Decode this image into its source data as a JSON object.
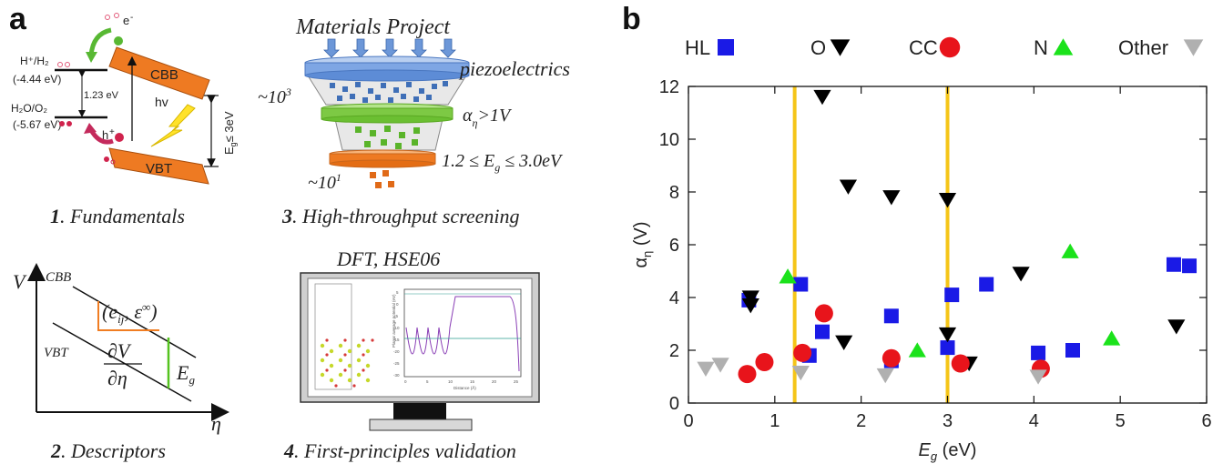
{
  "panel_a": {
    "letter": "a",
    "p1": {
      "num": "1",
      "caption": ". Fundamentals",
      "cbb": "CBB",
      "vbt": "VBT",
      "e_minus": "e",
      "e_minus_sup": "-",
      "h_plus": "h",
      "h_plus_sup": "+",
      "hv": "hv",
      "h2_label": "H⁺/H₂",
      "h2_energy": "(-4.44 eV)",
      "o2_label": "H₂O/O₂",
      "o2_energy": "(-5.67 eV)",
      "gap_small": "1.23 eV",
      "gap_label": "E",
      "gap_sub": "g",
      "gap_cond": "≤ 3eV"
    },
    "p2": {
      "num": "2",
      "caption": ". Descriptors",
      "v": "V",
      "eta": "η",
      "cbb": "CBB",
      "vbt": "VBT",
      "eij": "(e",
      "eij_sub": "ij",
      "eps": ", ε",
      "eps_sup": "∞",
      "close": ")",
      "dv": "∂V",
      "deta": "∂η",
      "eg": "E",
      "eg_sub": "g"
    },
    "p3": {
      "num": "3",
      "caption": ". High-throughput screening",
      "source": "Materials Project",
      "layer1": "piezoelectrics",
      "layer2_a": "α",
      "layer2_sub": "η",
      "layer2_b": ">1V",
      "layer3": "1.2 ≤ E",
      "layer3_sub": "g",
      "layer3_b": " ≤ 3.0eV",
      "count_top": "~10",
      "count_top_sup": "3",
      "count_bottom": "~10",
      "count_bottom_sup": "1"
    },
    "p4": {
      "num": "4",
      "caption": ". First-principles validation",
      "title": "DFT, HSE06",
      "plot_ylabel": "Planar average potential (eV)",
      "plot_xlabel": "Distance (Å)",
      "plot_yticks": [
        "5",
        "0",
        "-5",
        "-10",
        "-15",
        "-20",
        "-25",
        "-30"
      ],
      "plot_xticks": [
        "0",
        "5",
        "10",
        "15",
        "20",
        "25"
      ]
    }
  },
  "panel_b": {
    "letter": "b",
    "legend": [
      {
        "label": "HL",
        "marker": "square",
        "color": "#1a1ae6"
      },
      {
        "label": "O",
        "marker": "triangle-down",
        "color": "#000000"
      },
      {
        "label": "CC",
        "marker": "circle",
        "color": "#e8141b"
      },
      {
        "label": "N",
        "marker": "triangle-up",
        "color": "#1be21b"
      },
      {
        "label": "Other",
        "marker": "triangle-down",
        "color": "#b0b0b0"
      }
    ],
    "vlines_color": "#f5c518"
  },
  "chart_data": {
    "type": "scatter",
    "xlabel": "E",
    "xlabel_sub": "g",
    "xlabel_unit": " (eV)",
    "ylabel": "α",
    "ylabel_sub": "η",
    "ylabel_unit": " (V)",
    "xlim": [
      0,
      6
    ],
    "ylim": [
      0,
      12
    ],
    "xticks": [
      0,
      1,
      2,
      3,
      4,
      5,
      6
    ],
    "yticks": [
      0,
      2,
      4,
      6,
      8,
      10,
      12
    ],
    "legend_position": "top",
    "vlines": [
      1.23,
      3.0
    ],
    "series": [
      {
        "name": "HL",
        "points": [
          [
            0.7,
            3.9
          ],
          [
            1.3,
            4.5
          ],
          [
            1.4,
            1.8
          ],
          [
            1.55,
            2.7
          ],
          [
            2.35,
            3.3
          ],
          [
            2.35,
            1.6
          ],
          [
            3.0,
            2.1
          ],
          [
            3.05,
            4.1
          ],
          [
            3.45,
            4.5
          ],
          [
            4.05,
            1.9
          ],
          [
            4.45,
            2.0
          ],
          [
            5.62,
            5.25
          ],
          [
            5.8,
            5.2
          ]
        ]
      },
      {
        "name": "O",
        "points": [
          [
            0.72,
            4.0
          ],
          [
            0.72,
            3.7
          ],
          [
            1.55,
            11.6
          ],
          [
            1.8,
            2.3
          ],
          [
            1.85,
            8.2
          ],
          [
            2.35,
            7.8
          ],
          [
            3.0,
            7.7
          ],
          [
            3.0,
            2.6
          ],
          [
            3.25,
            1.5
          ],
          [
            3.85,
            4.9
          ],
          [
            5.65,
            2.9
          ]
        ]
      },
      {
        "name": "CC",
        "points": [
          [
            0.68,
            1.1
          ],
          [
            0.88,
            1.55
          ],
          [
            1.32,
            1.9
          ],
          [
            1.57,
            3.4
          ],
          [
            2.35,
            1.7
          ],
          [
            3.15,
            1.5
          ],
          [
            4.08,
            1.3
          ]
        ]
      },
      {
        "name": "N",
        "points": [
          [
            1.15,
            4.8
          ],
          [
            2.65,
            2.0
          ],
          [
            4.42,
            5.75
          ],
          [
            4.9,
            2.45
          ]
        ]
      },
      {
        "name": "Other",
        "points": [
          [
            0.2,
            1.3
          ],
          [
            0.37,
            1.45
          ],
          [
            1.3,
            1.15
          ],
          [
            2.28,
            1.05
          ],
          [
            4.05,
            1.0
          ]
        ]
      }
    ]
  }
}
